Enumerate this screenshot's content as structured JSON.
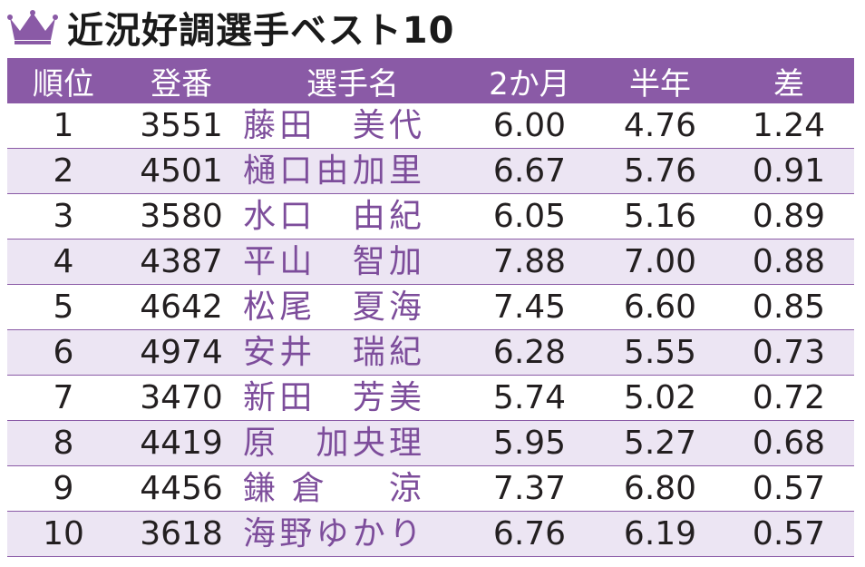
{
  "title": "近況好調選手ベスト10",
  "icon": "crown-icon",
  "colors": {
    "accent": "#8a5aa6",
    "row_alt": "#ece5f3",
    "name_text": "#7d4d9b"
  },
  "table": {
    "headers": {
      "rank": "順位",
      "reg": "登番",
      "name": "選手名",
      "two_month": "2か月",
      "half_year": "半年",
      "diff": "差"
    },
    "rows": [
      {
        "rank": "1",
        "reg": "3551",
        "name": "藤田　美代",
        "two_month": "6.00",
        "half_year": "4.76",
        "diff": "1.24"
      },
      {
        "rank": "2",
        "reg": "4501",
        "name": "樋口由加里",
        "two_month": "6.67",
        "half_year": "5.76",
        "diff": "0.91"
      },
      {
        "rank": "3",
        "reg": "3580",
        "name": "水口　由紀",
        "two_month": "6.05",
        "half_year": "5.16",
        "diff": "0.89"
      },
      {
        "rank": "4",
        "reg": "4387",
        "name": "平山　智加",
        "two_month": "7.88",
        "half_year": "7.00",
        "diff": "0.88"
      },
      {
        "rank": "5",
        "reg": "4642",
        "name": "松尾　夏海",
        "two_month": "7.45",
        "half_year": "6.60",
        "diff": "0.85"
      },
      {
        "rank": "6",
        "reg": "4974",
        "name": "安井　瑞紀",
        "two_month": "6.28",
        "half_year": "5.55",
        "diff": "0.73"
      },
      {
        "rank": "7",
        "reg": "3470",
        "name": "新田　芳美",
        "two_month": "5.74",
        "half_year": "5.02",
        "diff": "0.72"
      },
      {
        "rank": "8",
        "reg": "4419",
        "name": "原　加央理",
        "two_month": "5.95",
        "half_year": "5.27",
        "diff": "0.68"
      },
      {
        "rank": "9",
        "reg": "4456",
        "name": "鎌倉　涼",
        "two_month": "7.37",
        "half_year": "6.80",
        "diff": "0.57"
      },
      {
        "rank": "10",
        "reg": "3618",
        "name": "海野ゆかり",
        "two_month": "6.76",
        "half_year": "6.19",
        "diff": "0.57"
      }
    ]
  }
}
